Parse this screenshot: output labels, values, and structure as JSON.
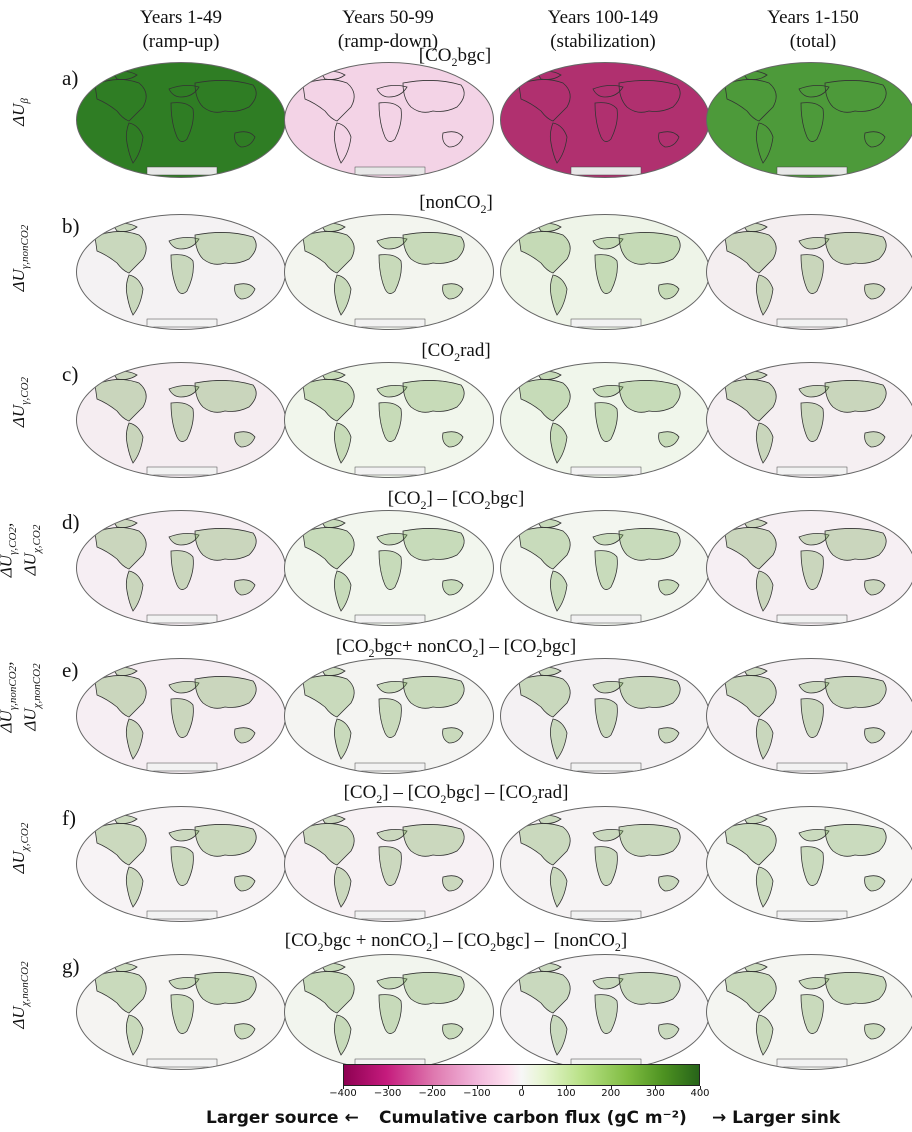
{
  "columns": [
    {
      "line1": "Years 1-49",
      "line2": "(ramp-up)"
    },
    {
      "line1": "Years 50-99",
      "line2": "(ramp-down)"
    },
    {
      "line1": "Years 100-149",
      "line2": "(stabilization)"
    },
    {
      "line1": "Years 1-150",
      "line2": "(total)"
    }
  ],
  "rows": [
    {
      "letter": "a)",
      "title": "[CO2bgc]",
      "ylabel": "ΔUβ",
      "colors": [
        "#2f7d24",
        "#f3d3e6",
        "#b0306f",
        "#4d9a3a"
      ]
    },
    {
      "letter": "b)",
      "title": "[nonCO2]",
      "ylabel": "ΔUγ,nonCO2",
      "colors": [
        "#f4f2f3",
        "#f3f5ef",
        "#eef4e8",
        "#f4eef0"
      ]
    },
    {
      "letter": "c)",
      "title": "[CO2rad]",
      "ylabel": "ΔUγ,CO2",
      "colors": [
        "#f5edf1",
        "#f1f6ec",
        "#f0f6eb",
        "#f5eff2"
      ]
    },
    {
      "letter": "d)",
      "title": "[CO2] – [CO2bgc]",
      "ylabel": "ΔUγ,CO2, ΔUχ,CO2",
      "colors": [
        "#f6eef3",
        "#f2f6ee",
        "#f3f6f0",
        "#f6eff3"
      ]
    },
    {
      "letter": "e)",
      "title": "[CO2bgc+ nonCO2] – [CO2bgc]",
      "ylabel": "ΔUγ,nonCO2, ΔUχ,nonCO2",
      "colors": [
        "#f6eef3",
        "#f4f4f2",
        "#f4f1f3",
        "#f5f0f3"
      ]
    },
    {
      "letter": "f)",
      "title": "[CO2] – [CO2bgc] – [CO2rad]",
      "ylabel": "ΔUχ,CO2",
      "colors": [
        "#f7f3f5",
        "#f7f1f4",
        "#f6f3f4",
        "#f6f6f4"
      ]
    },
    {
      "letter": "g)",
      "title": "[CO2bgc + nonCO2] – [CO2bgc] – [nonCO2]",
      "ylabel": "ΔUχ,nonCO2",
      "colors": [
        "#f5f4f2",
        "#f2f5ee",
        "#f5f3f4",
        "#f4f5f1"
      ]
    }
  ],
  "colorbar": {
    "ticks": [
      "−400",
      "−300",
      "−200",
      "−100",
      "0",
      "100",
      "200",
      "300",
      "400"
    ],
    "range": [
      -400,
      400
    ],
    "colormap": "PiYG",
    "left_label": "Larger source ←",
    "center_label": "Cumulative carbon flux (gC m⁻²)",
    "right_label": "→ Larger sink"
  }
}
